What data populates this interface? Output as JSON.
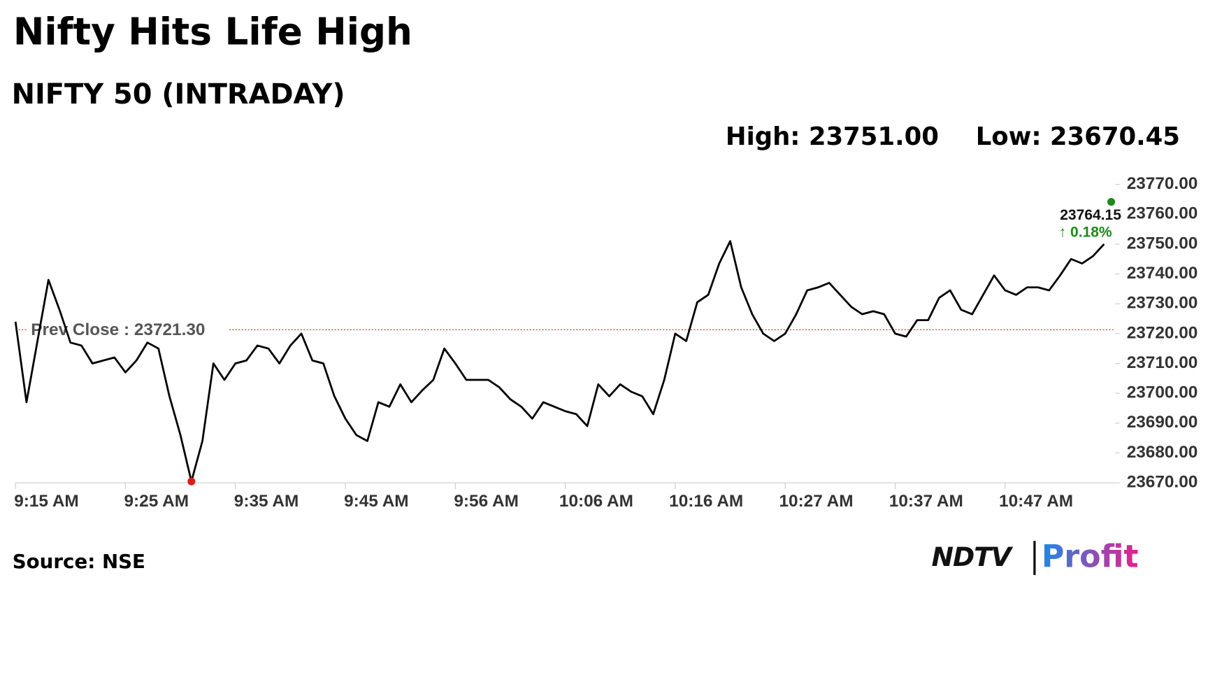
{
  "title": "Nifty Hits Life High",
  "source": "Source: NSE",
  "logo": {
    "brand": "NDTV",
    "product": "Profit"
  },
  "chart_data": {
    "type": "line",
    "subtitle": "NIFTY 50 (INTRADAY)",
    "high_label": "High: 23751.00",
    "low_label": "Low: 23670.45",
    "categories": [
      "9:15 AM",
      null,
      null,
      null,
      null,
      null,
      null,
      null,
      null,
      null,
      "9:25 AM",
      null,
      null,
      null,
      null,
      null,
      null,
      null,
      null,
      null,
      "9:35 AM",
      null,
      null,
      null,
      null,
      null,
      null,
      null,
      null,
      null,
      "9:45 AM",
      null,
      null,
      null,
      null,
      null,
      null,
      null,
      null,
      null,
      "9:56 AM",
      null,
      null,
      null,
      null,
      null,
      null,
      null,
      null,
      null,
      "10:06 AM",
      null,
      null,
      null,
      null,
      null,
      null,
      null,
      null,
      null,
      "10:16 AM",
      null,
      null,
      null,
      null,
      null,
      null,
      null,
      null,
      null,
      "10:27 AM",
      null,
      null,
      null,
      null,
      null,
      null,
      null,
      null,
      null,
      "10:37 AM",
      null,
      null,
      null,
      null,
      null,
      null,
      null,
      null,
      null,
      "10:47 AM",
      null,
      null,
      null,
      null,
      null,
      null,
      null,
      null,
      null
    ],
    "values": [
      23724,
      23697,
      23717.5,
      23738,
      23728,
      23717,
      23716,
      23710,
      23711,
      23712,
      23707,
      23711,
      23717,
      23715,
      23699,
      23686,
      23670.45,
      23684,
      23710,
      23704.5,
      23710,
      23711,
      23716,
      23715,
      23710,
      23716,
      23720,
      23711,
      23710,
      23699,
      23691.5,
      23686,
      23684,
      23697,
      23695.5,
      23703,
      23697,
      23701,
      23704.5,
      23715,
      23710,
      23704.5,
      23704.5,
      23704.5,
      23702,
      23698,
      23695.5,
      23691.5,
      23697,
      23695.5,
      23694,
      23693,
      23689,
      23703,
      23699,
      23703,
      23700.5,
      23699,
      23693,
      23704.5,
      23720,
      23717.5,
      23730.5,
      23733,
      23743.5,
      23751,
      23735.5,
      23726.5,
      23720,
      23717.5,
      23720,
      23726.5,
      23734.5,
      23735.5,
      23737,
      23733,
      23729,
      23726.5,
      23727.5,
      23726.5,
      23720,
      23719,
      23724.5,
      23724.5,
      23732,
      23734.5,
      23728,
      23726.5,
      23733,
      23739.5,
      23734.5,
      23733,
      23735.5,
      23735.5,
      23734.5,
      23739.5,
      23745,
      23743.5,
      23746,
      23750
    ],
    "color": "#000000",
    "ylim": [
      23670,
      23770
    ],
    "yticks": [
      {
        "value": 23670,
        "label": "23670.00"
      },
      {
        "value": 23680,
        "label": "23680.00"
      },
      {
        "value": 23690,
        "label": "23690.00"
      },
      {
        "value": 23700,
        "label": "23700.00"
      },
      {
        "value": 23710,
        "label": "23710.00"
      },
      {
        "value": 23720,
        "label": "23720.00"
      },
      {
        "value": 23730,
        "label": "23730.00"
      },
      {
        "value": 23740,
        "label": "23740.00"
      },
      {
        "value": 23750,
        "label": "23750.00"
      },
      {
        "value": 23760,
        "label": "23760.00"
      },
      {
        "value": 23770,
        "label": "23770.00"
      }
    ],
    "grid": false,
    "prev_close": {
      "value": 23721.3,
      "label": "Prev Close : 23721.30",
      "color": "#c0392b"
    },
    "last_price": {
      "value": 23764.15,
      "label": "23764.15",
      "change": "↑ 0.18%",
      "change_color": "#1a8a1a"
    },
    "low_marker_color": "#e01b1b"
  }
}
